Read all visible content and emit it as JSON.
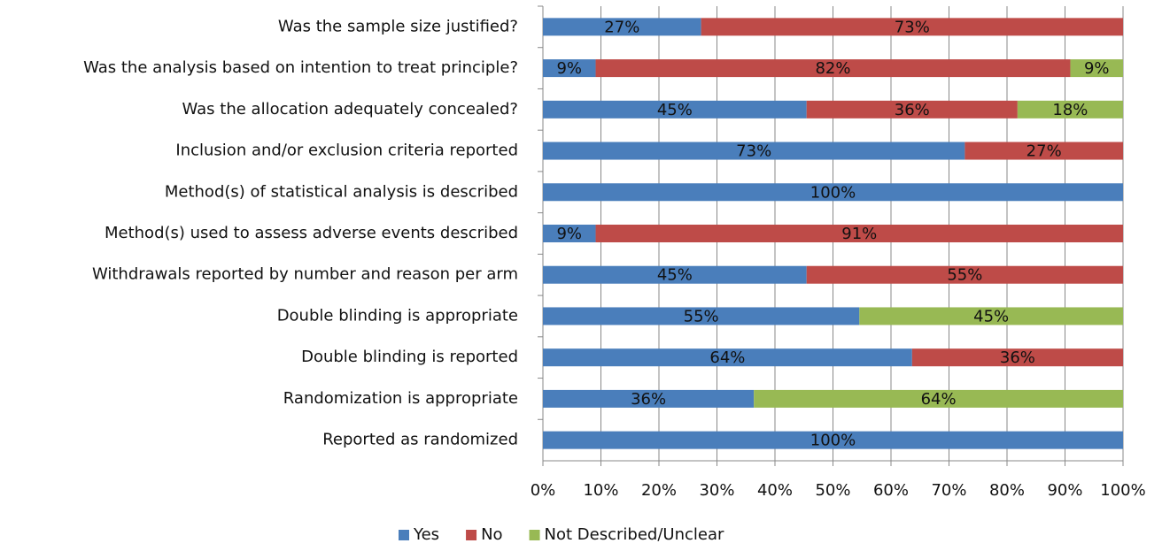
{
  "chart_data": {
    "type": "stacked-bar-horizontal",
    "categories": [
      "Was the sample size justified?",
      "Was the analysis based on intention to treat principle?",
      "Was the allocation adequately concealed?",
      "Inclusion and/or exclusion criteria reported",
      "Method(s) of statistical analysis is described",
      "Method(s) used to assess adverse events described",
      "Withdrawals reported by number and reason per arm",
      "Double blinding is appropriate",
      "Double blinding is reported",
      "Randomization is appropriate",
      "Reported as randomized"
    ],
    "series": [
      {
        "name": "Yes",
        "color": "#4a7ebb",
        "values": [
          27.27,
          9.09,
          45.45,
          72.73,
          100,
          9.09,
          45.45,
          54.55,
          63.64,
          36.36,
          100
        ],
        "value_labels": [
          "27%",
          "9%",
          "45%",
          "73%",
          "100%",
          "9%",
          "45%",
          "55%",
          "64%",
          "36%",
          "100%"
        ]
      },
      {
        "name": "No",
        "color": "#be4b48",
        "values": [
          72.73,
          81.82,
          36.36,
          27.27,
          null,
          90.91,
          54.55,
          null,
          36.36,
          null,
          null
        ],
        "value_labels": [
          "73%",
          "82%",
          "36%",
          "27%",
          null,
          "91%",
          "55%",
          null,
          "36%",
          null,
          null
        ]
      },
      {
        "name": "Not Described/Unclear",
        "color": "#98b954",
        "values": [
          null,
          9.09,
          18.18,
          null,
          null,
          null,
          null,
          45.45,
          null,
          63.64,
          null
        ],
        "value_labels": [
          null,
          "9%",
          "18%",
          null,
          null,
          null,
          null,
          "45%",
          null,
          "64%",
          null
        ]
      }
    ],
    "xlim": [
      0,
      100
    ],
    "xticks": [
      {
        "value": 0,
        "label": "0%"
      },
      {
        "value": 10,
        "label": "10%"
      },
      {
        "value": 20,
        "label": "20%"
      },
      {
        "value": 30,
        "label": "30%"
      },
      {
        "value": 40,
        "label": "40%"
      },
      {
        "value": 50,
        "label": "50%"
      },
      {
        "value": 60,
        "label": "60%"
      },
      {
        "value": 70,
        "label": "70%"
      },
      {
        "value": 80,
        "label": "80%"
      },
      {
        "value": 90,
        "label": "90%"
      },
      {
        "value": 100,
        "label": "100%"
      }
    ],
    "grid": true,
    "legend": "bottom"
  }
}
